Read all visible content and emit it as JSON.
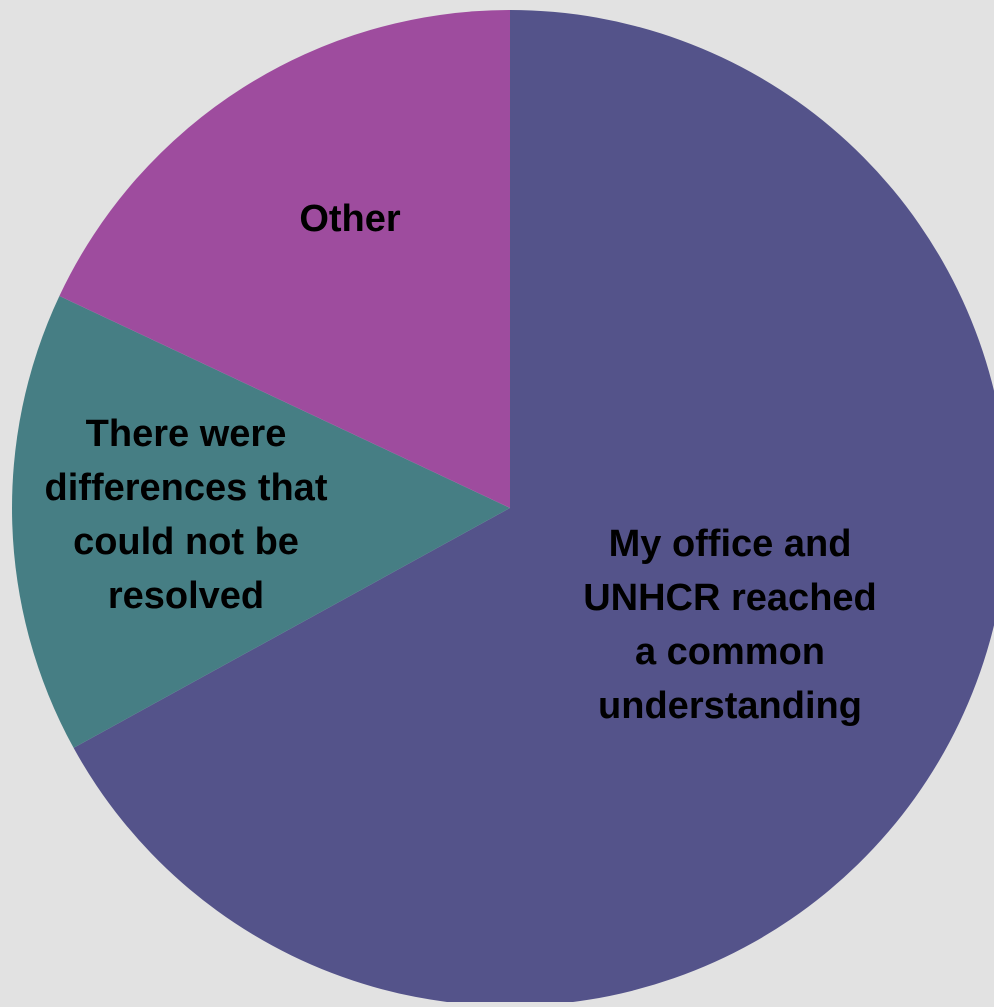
{
  "chart_data": {
    "type": "pie",
    "slices": [
      {
        "label_lines": [
          "My office and",
          "UNHCR reached",
          "a common",
          "understanding"
        ],
        "value": 67,
        "color": "#54538a"
      },
      {
        "label_lines": [
          "There were",
          "differences that",
          "could not be",
          "resolved"
        ],
        "value": 15,
        "color": "#467e84"
      },
      {
        "label_lines": [
          "Other"
        ],
        "value": 18,
        "color": "#9e4c9e"
      }
    ]
  }
}
